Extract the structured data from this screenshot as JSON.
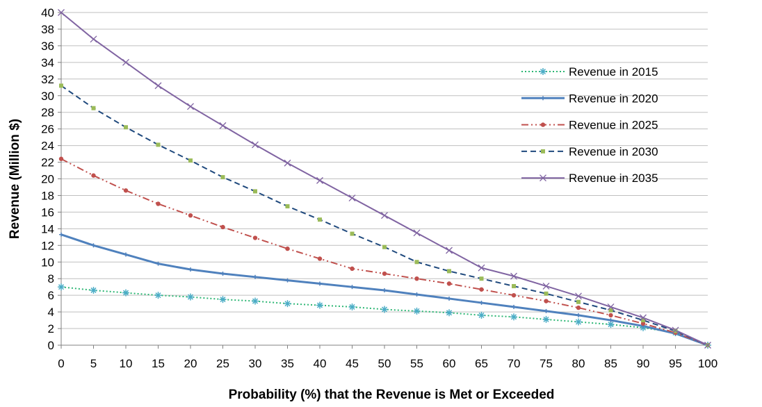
{
  "chart_data": {
    "type": "line",
    "title": "",
    "xlabel": "Probability (%) that the Revenue is Met or Exceeded",
    "ylabel": "Revenue (Million $)",
    "xlim": [
      0,
      100
    ],
    "ylim": [
      0,
      40
    ],
    "x_ticks": [
      0,
      5,
      10,
      15,
      20,
      25,
      30,
      35,
      40,
      45,
      50,
      55,
      60,
      65,
      70,
      75,
      80,
      85,
      90,
      95,
      100
    ],
    "y_ticks": [
      0,
      2,
      4,
      6,
      8,
      10,
      12,
      14,
      16,
      18,
      20,
      22,
      24,
      26,
      28,
      30,
      32,
      34,
      36,
      38,
      40
    ],
    "grid": "horizontal",
    "legend_position": "right",
    "x": [
      0,
      5,
      10,
      15,
      20,
      25,
      30,
      35,
      40,
      45,
      50,
      55,
      60,
      65,
      70,
      75,
      80,
      85,
      90,
      95,
      100
    ],
    "series": [
      {
        "name": "Revenue in 2015",
        "color": "#2bb673",
        "marker_color": "#4bacc6",
        "dash": "dotted",
        "marker": "asterisk",
        "values": [
          7.0,
          6.6,
          6.3,
          6.0,
          5.8,
          5.5,
          5.3,
          5.0,
          4.8,
          4.6,
          4.3,
          4.1,
          3.9,
          3.6,
          3.4,
          3.1,
          2.8,
          2.5,
          2.1,
          1.5,
          0.0
        ]
      },
      {
        "name": "Revenue in 2020",
        "color": "#4f81bd",
        "marker_color": "#4f81bd",
        "dash": "solid",
        "marker": "plus",
        "values": [
          13.3,
          12.0,
          10.9,
          9.8,
          9.1,
          8.6,
          8.2,
          7.8,
          7.4,
          7.0,
          6.6,
          6.1,
          5.6,
          5.1,
          4.6,
          4.1,
          3.6,
          3.0,
          2.3,
          1.4,
          0.0
        ]
      },
      {
        "name": "Revenue in 2025",
        "color": "#c0504d",
        "marker_color": "#c0504d",
        "dash": "dashdot",
        "marker": "circle",
        "values": [
          22.4,
          20.4,
          18.6,
          17.0,
          15.6,
          14.2,
          12.9,
          11.6,
          10.4,
          9.2,
          8.6,
          8.0,
          7.4,
          6.7,
          6.0,
          5.3,
          4.5,
          3.6,
          2.6,
          1.5,
          0.0
        ]
      },
      {
        "name": "Revenue in 2030",
        "color": "#1f497d",
        "marker_color": "#9bbb59",
        "dash": "dashed",
        "marker": "square",
        "values": [
          31.2,
          28.5,
          26.2,
          24.1,
          22.2,
          20.2,
          18.5,
          16.7,
          15.1,
          13.4,
          11.8,
          10.0,
          8.9,
          8.0,
          7.1,
          6.2,
          5.2,
          4.2,
          3.0,
          1.7,
          0.0
        ]
      },
      {
        "name": "Revenue in 2035",
        "color": "#8064a2",
        "marker_color": "#8064a2",
        "dash": "solid",
        "marker": "x",
        "values": [
          40.0,
          36.8,
          34.0,
          31.2,
          28.7,
          26.4,
          24.1,
          21.9,
          19.8,
          17.7,
          15.6,
          13.5,
          11.4,
          9.3,
          8.3,
          7.1,
          5.9,
          4.6,
          3.3,
          1.8,
          0.0
        ]
      }
    ]
  }
}
